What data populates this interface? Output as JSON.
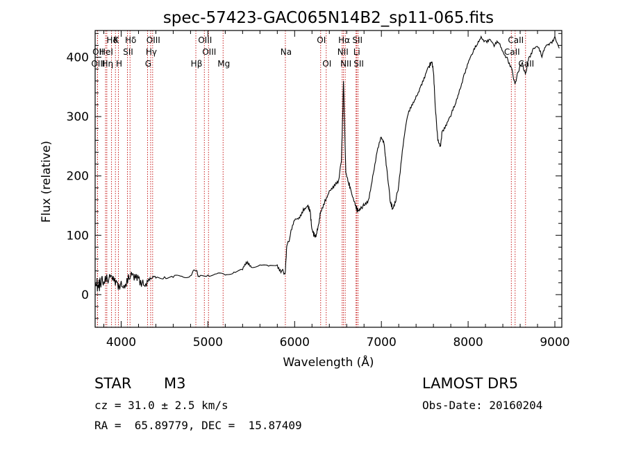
{
  "chart_data": {
    "type": "line",
    "title": "spec-57423-GAC065N14B2_sp11-065.fits",
    "xlabel": "Wavelength (Å)",
    "ylabel": "Flux (relative)",
    "xlim": [
      3700,
      9080
    ],
    "ylim": [
      -55,
      445
    ],
    "x_ticks": [
      4000,
      5000,
      6000,
      7000,
      8000,
      9000
    ],
    "y_ticks": [
      0,
      100,
      200,
      300,
      400
    ],
    "grid": false,
    "line_color": "#000000",
    "marker_color": "#c00000",
    "lines": [
      {
        "label": "Hδ",
        "wavelength": 3889,
        "row": 0
      },
      {
        "label": "K",
        "wavelength": 3934,
        "row": 0
      },
      {
        "label": "Hδ",
        "wavelength": 4102,
        "row": 0
      },
      {
        "label": "OIII",
        "wavelength": 4363,
        "row": 0
      },
      {
        "label": "OIII",
        "wavelength": 4959,
        "row": 0
      },
      {
        "label": "OI",
        "wavelength": 6300,
        "row": 0
      },
      {
        "label": "Hα",
        "wavelength": 6563,
        "row": 0
      },
      {
        "label": "SII",
        "wavelength": 6716,
        "row": 0
      },
      {
        "label": "CaII",
        "wavelength": 8542,
        "row": 0
      },
      {
        "label": "OII",
        "wavelength": 3727,
        "row": 1
      },
      {
        "label": "HeI",
        "wavelength": 3820,
        "row": 1
      },
      {
        "label": "SII",
        "wavelength": 4072,
        "row": 1
      },
      {
        "label": "Hγ",
        "wavelength": 4340,
        "row": 1
      },
      {
        "label": "OIII",
        "wavelength": 5007,
        "row": 1
      },
      {
        "label": "Na",
        "wavelength": 5893,
        "row": 1
      },
      {
        "label": "NII",
        "wavelength": 6548,
        "row": 1
      },
      {
        "label": "Li",
        "wavelength": 6708,
        "row": 1
      },
      {
        "label": "CaII",
        "wavelength": 8498,
        "row": 1
      },
      {
        "label": "OIII",
        "wavelength": 3727,
        "row": 2
      },
      {
        "label": "Hη",
        "wavelength": 3835,
        "row": 2
      },
      {
        "label": "H",
        "wavelength": 3968,
        "row": 2
      },
      {
        "label": "G",
        "wavelength": 4304,
        "row": 2
      },
      {
        "label": "Hβ",
        "wavelength": 4861,
        "row": 2
      },
      {
        "label": "Mg",
        "wavelength": 5175,
        "row": 2
      },
      {
        "label": "OI",
        "wavelength": 6364,
        "row": 2
      },
      {
        "label": "NII",
        "wavelength": 6583,
        "row": 2
      },
      {
        "label": "SII",
        "wavelength": 6731,
        "row": 2
      },
      {
        "label": "CaII",
        "wavelength": 8662,
        "row": 2
      }
    ],
    "spectrum": [
      [
        3705,
        20
      ],
      [
        3730,
        15
      ],
      [
        3760,
        18
      ],
      [
        3800,
        22
      ],
      [
        3850,
        20
      ],
      [
        3900,
        24
      ],
      [
        3950,
        21
      ],
      [
        4000,
        23
      ],
      [
        4050,
        18
      ],
      [
        4100,
        26
      ],
      [
        4150,
        24
      ],
      [
        4200,
        28
      ],
      [
        4250,
        25
      ],
      [
        4300,
        24
      ],
      [
        4350,
        27
      ],
      [
        4400,
        28
      ],
      [
        4500,
        30
      ],
      [
        4600,
        29
      ],
      [
        4700,
        31
      ],
      [
        4800,
        32
      ],
      [
        4860,
        40
      ],
      [
        4900,
        30
      ],
      [
        5000,
        33
      ],
      [
        5100,
        35
      ],
      [
        5200,
        33
      ],
      [
        5300,
        38
      ],
      [
        5400,
        42
      ],
      [
        5450,
        52
      ],
      [
        5500,
        46
      ],
      [
        5600,
        50
      ],
      [
        5700,
        48
      ],
      [
        5800,
        50
      ],
      [
        5850,
        40
      ],
      [
        5890,
        35
      ],
      [
        5910,
        82
      ],
      [
        5950,
        100
      ],
      [
        6000,
        125
      ],
      [
        6050,
        130
      ],
      [
        6100,
        145
      ],
      [
        6150,
        150
      ],
      [
        6180,
        140
      ],
      [
        6200,
        110
      ],
      [
        6230,
        98
      ],
      [
        6250,
        102
      ],
      [
        6280,
        120
      ],
      [
        6300,
        140
      ],
      [
        6350,
        160
      ],
      [
        6400,
        175
      ],
      [
        6450,
        180
      ],
      [
        6500,
        188
      ],
      [
        6540,
        225
      ],
      [
        6563,
        360
      ],
      [
        6590,
        205
      ],
      [
        6620,
        190
      ],
      [
        6650,
        175
      ],
      [
        6700,
        150
      ],
      [
        6730,
        140
      ],
      [
        6760,
        145
      ],
      [
        6800,
        150
      ],
      [
        6850,
        160
      ],
      [
        6900,
        200
      ],
      [
        6950,
        240
      ],
      [
        7000,
        265
      ],
      [
        7030,
        255
      ],
      [
        7060,
        215
      ],
      [
        7100,
        158
      ],
      [
        7130,
        145
      ],
      [
        7160,
        155
      ],
      [
        7200,
        185
      ],
      [
        7250,
        250
      ],
      [
        7300,
        300
      ],
      [
        7350,
        320
      ],
      [
        7400,
        335
      ],
      [
        7450,
        350
      ],
      [
        7500,
        365
      ],
      [
        7550,
        385
      ],
      [
        7580,
        392
      ],
      [
        7600,
        375
      ],
      [
        7620,
        320
      ],
      [
        7650,
        260
      ],
      [
        7680,
        250
      ],
      [
        7700,
        275
      ],
      [
        7750,
        285
      ],
      [
        7800,
        300
      ],
      [
        7850,
        320
      ],
      [
        7900,
        345
      ],
      [
        7950,
        370
      ],
      [
        8000,
        390
      ],
      [
        8050,
        405
      ],
      [
        8100,
        420
      ],
      [
        8150,
        435
      ],
      [
        8200,
        428
      ],
      [
        8250,
        430
      ],
      [
        8300,
        418
      ],
      [
        8350,
        425
      ],
      [
        8400,
        410
      ],
      [
        8450,
        400
      ],
      [
        8500,
        382
      ],
      [
        8540,
        355
      ],
      [
        8580,
        375
      ],
      [
        8620,
        390
      ],
      [
        8660,
        372
      ],
      [
        8700,
        400
      ],
      [
        8750,
        415
      ],
      [
        8800,
        418
      ],
      [
        8850,
        400
      ],
      [
        8900,
        420
      ],
      [
        8950,
        425
      ],
      [
        9000,
        435
      ],
      [
        9050,
        415
      ]
    ]
  },
  "info": {
    "object_class": "STAR",
    "subclass": "M3",
    "survey": "LAMOST DR5",
    "redshift": "cz = 31.0 ± 2.5 km/s",
    "obs_date": "Obs-Date: 20160204",
    "coordinates": "RA =  65.89779, DEC =  15.87409"
  }
}
